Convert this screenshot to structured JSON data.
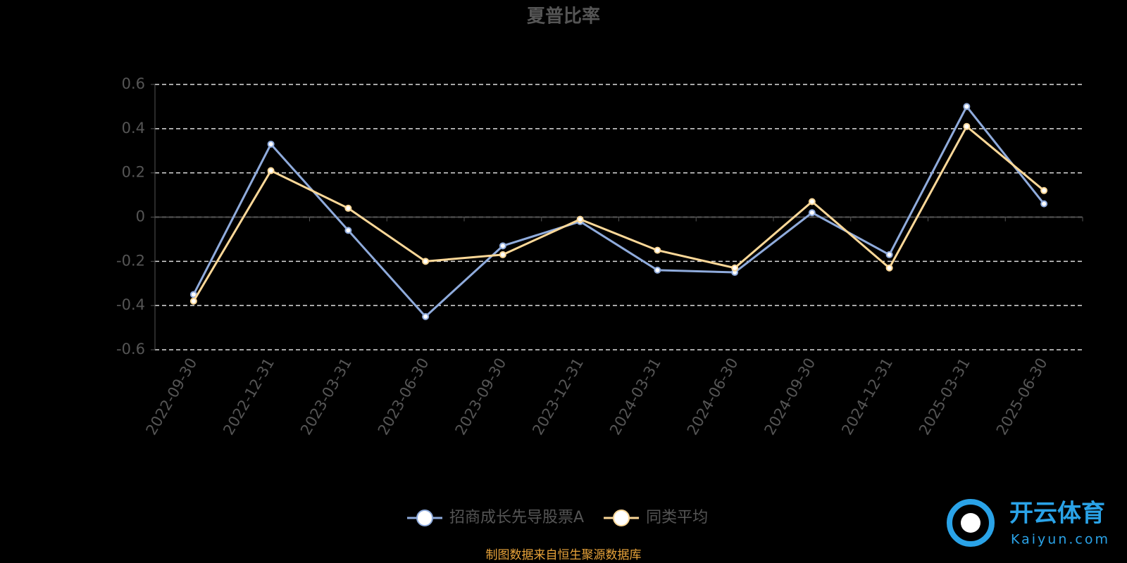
{
  "chart_data": {
    "type": "line",
    "title": "夏普比率",
    "categories": [
      "2022-09-30",
      "2022-12-31",
      "2023-03-31",
      "2023-06-30",
      "2023-09-30",
      "2023-12-31",
      "2024-03-31",
      "2024-06-30",
      "2024-09-30",
      "2024-12-31",
      "2025-03-31",
      "2025-06-30"
    ],
    "series": [
      {
        "name": "招商成长先导股票A",
        "color": "#8fabdc",
        "values": [
          -0.35,
          0.33,
          -0.06,
          -0.45,
          -0.13,
          -0.02,
          -0.24,
          -0.25,
          0.02,
          -0.17,
          0.5,
          0.06
        ]
      },
      {
        "name": "同类平均",
        "color": "#fcd898",
        "values": [
          -0.38,
          0.21,
          0.04,
          -0.2,
          -0.17,
          -0.01,
          -0.15,
          -0.23,
          0.07,
          -0.23,
          0.41,
          0.12
        ]
      }
    ],
    "ylim": [
      -0.6,
      0.6
    ],
    "yticks": [
      -0.6,
      -0.4,
      -0.2,
      0,
      0.2,
      0.4,
      0.6
    ],
    "grid": true,
    "source": "制图数据来自恒生聚源数据库",
    "watermark": {
      "name": "开云体育",
      "url": "Kaiyun.com"
    }
  }
}
